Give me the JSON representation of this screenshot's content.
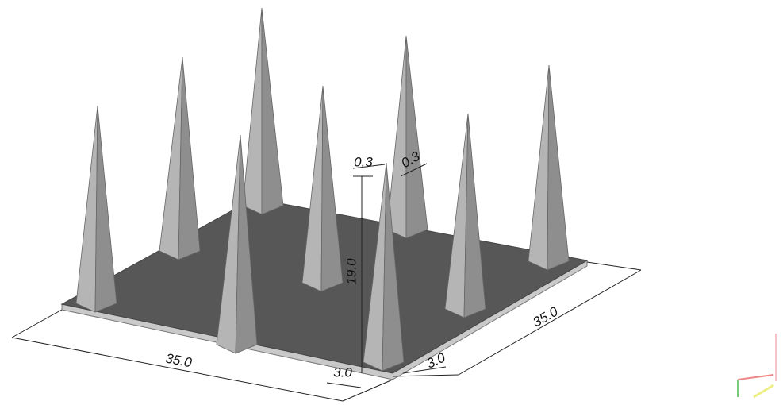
{
  "dimensions": {
    "base_width": "35.0",
    "base_depth": "35.0",
    "spike_height": "19.0",
    "base_thickness_front": "3.0",
    "base_thickness_side": "3.0",
    "tip_width_front": "0.3",
    "tip_width_side": "0.3"
  }
}
